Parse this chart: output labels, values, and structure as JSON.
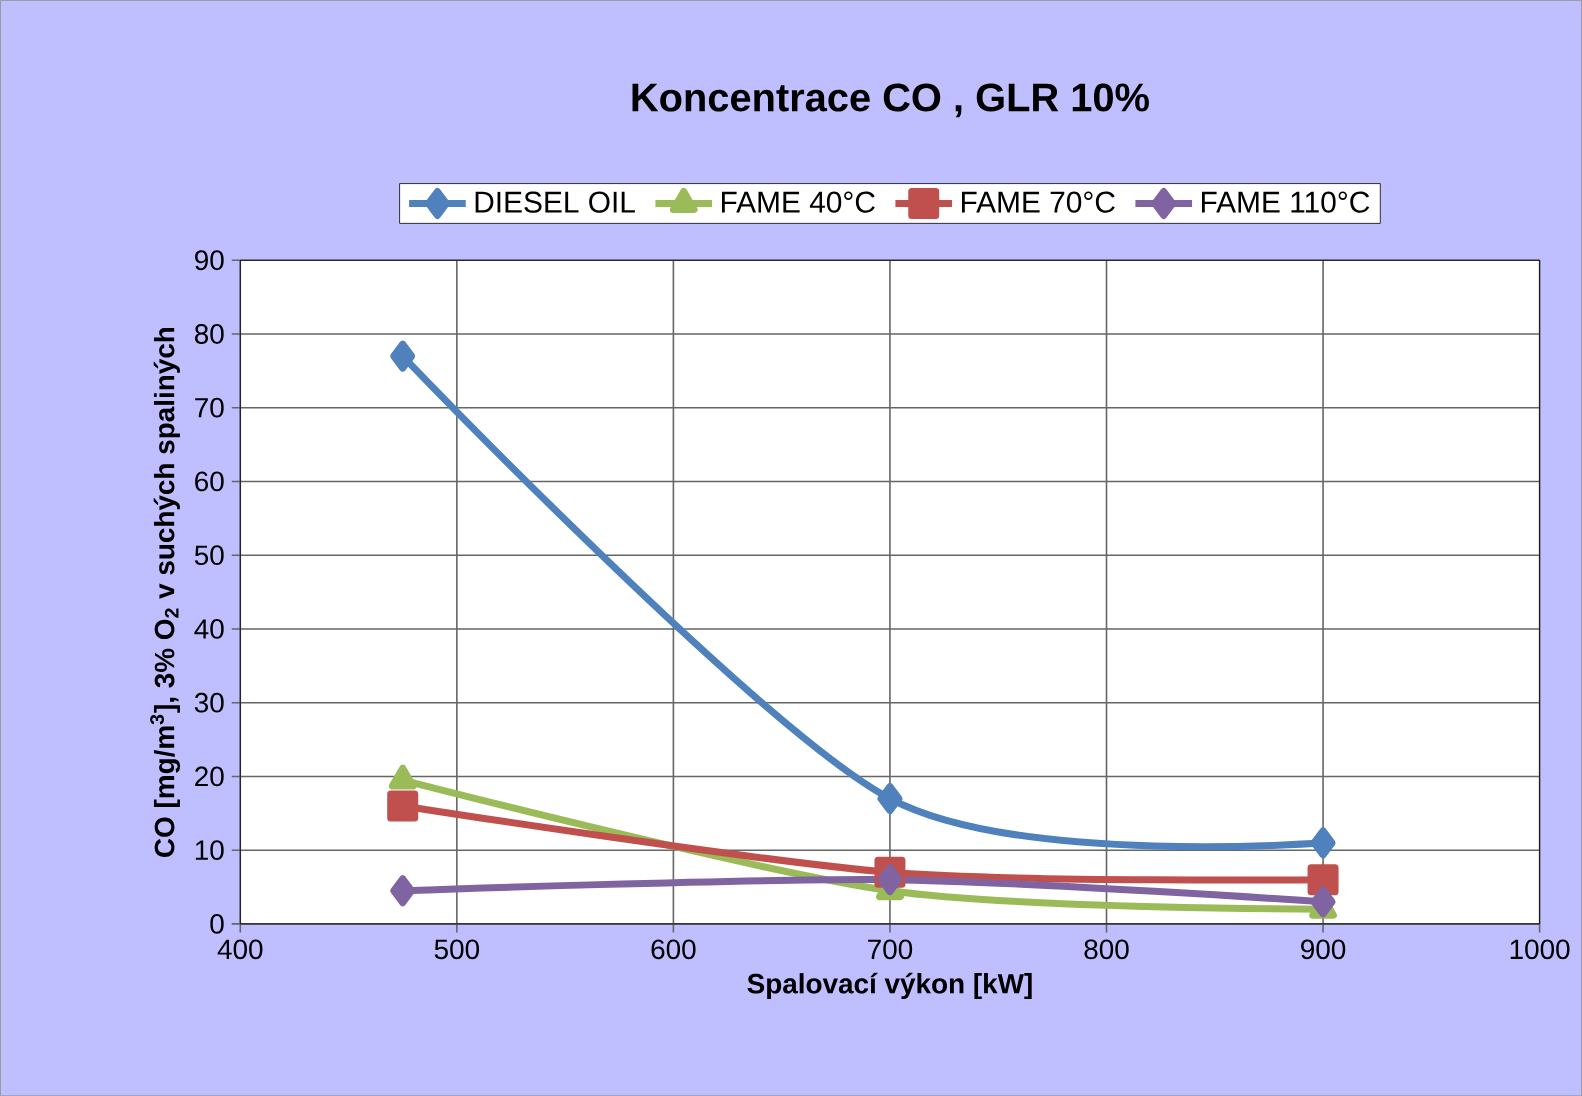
{
  "chart_data": {
    "type": "line",
    "title": "Koncentrace CO , GLR 10%",
    "xlabel": "Spalovací výkon [kW]",
    "ylabel": "CO  [mg/m$^{3}$], 3% O$_{2}$ v suchých spaliných",
    "x": [
      475,
      700,
      900
    ],
    "series": [
      {
        "name": "DIESEL OIL",
        "color": "#4f81bd",
        "marker": "diamond",
        "values": [
          77,
          17,
          11
        ]
      },
      {
        "name": "FAME 40°C",
        "color": "#9bbb59",
        "marker": "triangle",
        "values": [
          19.5,
          4.5,
          2
        ]
      },
      {
        "name": "FAME 70°C",
        "color": "#c0504d",
        "marker": "square",
        "values": [
          16,
          7,
          6
        ]
      },
      {
        "name": "FAME 110°C",
        "color": "#8064a2",
        "marker": "diamond",
        "values": [
          4.5,
          6,
          3
        ]
      }
    ],
    "xlim": [
      400,
      1000
    ],
    "xticks": [
      400,
      500,
      600,
      700,
      800,
      900,
      1000
    ],
    "ylim": [
      0,
      90
    ],
    "yticks": [
      0,
      10,
      20,
      30,
      40,
      50,
      60,
      70,
      80,
      90
    ],
    "grid": true,
    "legend": "top",
    "line_style": "solid"
  }
}
